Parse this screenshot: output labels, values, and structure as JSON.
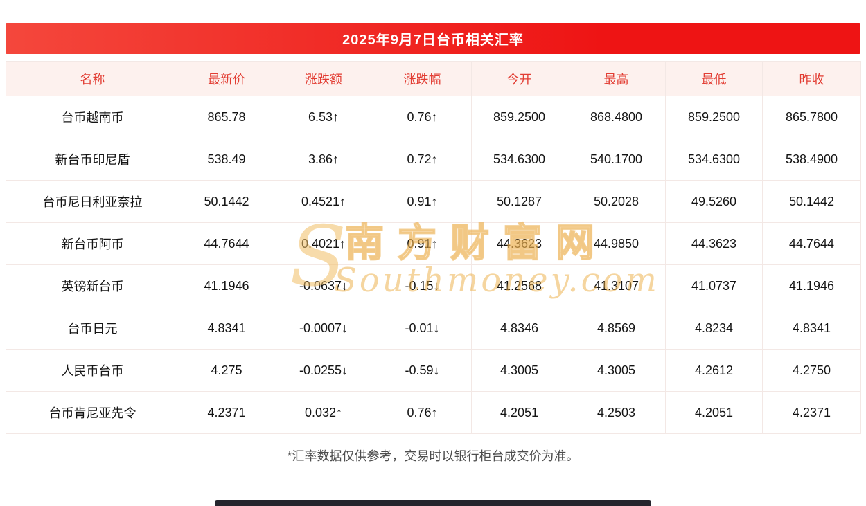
{
  "banner": {
    "title": "2025年9月7日台币相关汇率"
  },
  "footnote": "*汇率数据仅供参考，交易时以银行柜台成交价为准。",
  "watermark": {
    "logo": "S",
    "cn": "南方财富网",
    "en": "Southmoney.com"
  },
  "colors": {
    "banner_left": "#f4473c",
    "banner_right": "#ee1414",
    "header_bg": "#fdf1ee",
    "header_text": "#e23d33",
    "grid": "#f3e8e5",
    "up": "#e23d33",
    "down": "#21a350",
    "watermark_gold": "#e9a73e"
  },
  "chart_data": {
    "type": "table",
    "title": "2025年9月7日台币相关汇率",
    "columns": [
      "名称",
      "最新价",
      "涨跌额",
      "涨跌幅",
      "今开",
      "最高",
      "最低",
      "昨收"
    ],
    "rows": [
      {
        "name": "台币越南币",
        "latest": "865.78",
        "change": "6.53↑",
        "pct": "0.76↑",
        "open": "859.2500",
        "high": "868.4800",
        "low": "859.2500",
        "prev_close": "865.7800",
        "direction": "up"
      },
      {
        "name": "新台币印尼盾",
        "latest": "538.49",
        "change": "3.86↑",
        "pct": "0.72↑",
        "open": "534.6300",
        "high": "540.1700",
        "low": "534.6300",
        "prev_close": "538.4900",
        "direction": "up"
      },
      {
        "name": "台币尼日利亚奈拉",
        "latest": "50.1442",
        "change": "0.4521↑",
        "pct": "0.91↑",
        "open": "50.1287",
        "high": "50.2028",
        "low": "49.5260",
        "prev_close": "50.1442",
        "direction": "up"
      },
      {
        "name": "新台币阿币",
        "latest": "44.7644",
        "change": "0.4021↑",
        "pct": "0.91↑",
        "open": "44.3623",
        "high": "44.9850",
        "low": "44.3623",
        "prev_close": "44.7644",
        "direction": "up"
      },
      {
        "name": "英镑新台币",
        "latest": "41.1946",
        "change": "-0.0637↓",
        "pct": "-0.15↓",
        "open": "41.2568",
        "high": "41.3107",
        "low": "41.0737",
        "prev_close": "41.1946",
        "direction": "down"
      },
      {
        "name": "台币日元",
        "latest": "4.8341",
        "change": "-0.0007↓",
        "pct": "-0.01↓",
        "open": "4.8346",
        "high": "4.8569",
        "low": "4.8234",
        "prev_close": "4.8341",
        "direction": "down"
      },
      {
        "name": "人民币台币",
        "latest": "4.275",
        "change": "-0.0255↓",
        "pct": "-0.59↓",
        "open": "4.3005",
        "high": "4.3005",
        "low": "4.2612",
        "prev_close": "4.2750",
        "direction": "down"
      },
      {
        "name": "台币肯尼亚先令",
        "latest": "4.2371",
        "change": "0.032↑",
        "pct": "0.76↑",
        "open": "4.2051",
        "high": "4.2503",
        "low": "4.2051",
        "prev_close": "4.2371",
        "direction": "up"
      }
    ]
  }
}
